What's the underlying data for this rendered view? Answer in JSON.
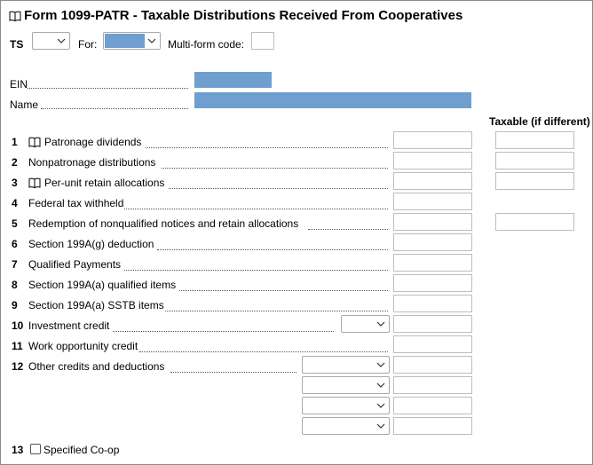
{
  "form": {
    "title": "Form 1099-PATR - Taxable Distributions Received From Cooperatives",
    "ts_label": "TS",
    "for_label": "For:",
    "multiform_label": "Multi-form code:",
    "ein_label": "EIN",
    "name_label": "Name",
    "taxable_header": "Taxable (if different)"
  },
  "lines": [
    {
      "num": "1",
      "label": "Patronage dividends",
      "book": true
    },
    {
      "num": "2",
      "label": "Nonpatronage distributions",
      "book": false
    },
    {
      "num": "3",
      "label": "Per-unit retain allocations",
      "book": true
    },
    {
      "num": "4",
      "label": "Federal tax withheld",
      "book": false
    },
    {
      "num": "5",
      "label": "Redemption of nonqualified notices and retain allocations",
      "book": false
    },
    {
      "num": "6",
      "label": "Section 199A(g) deduction",
      "book": false
    },
    {
      "num": "7",
      "label": "Qualified Payments",
      "book": false
    },
    {
      "num": "8",
      "label": "Section 199A(a) qualified items",
      "book": false
    },
    {
      "num": "9",
      "label": "Section 199A(a) SSTB items",
      "book": false
    },
    {
      "num": "10",
      "label": "Investment credit",
      "book": false
    },
    {
      "num": "11",
      "label": "Work opportunity credit",
      "book": false
    },
    {
      "num": "12",
      "label": "Other credits and deductions",
      "book": false
    },
    {
      "num": "13",
      "label": "Specified Co-op",
      "book": false
    }
  ],
  "colors": {
    "accent_fill": "#6f9fcf",
    "field_border": "#bdbdbd"
  },
  "icons": {
    "book": "book-icon",
    "dropdown": "chevron-down-icon"
  }
}
